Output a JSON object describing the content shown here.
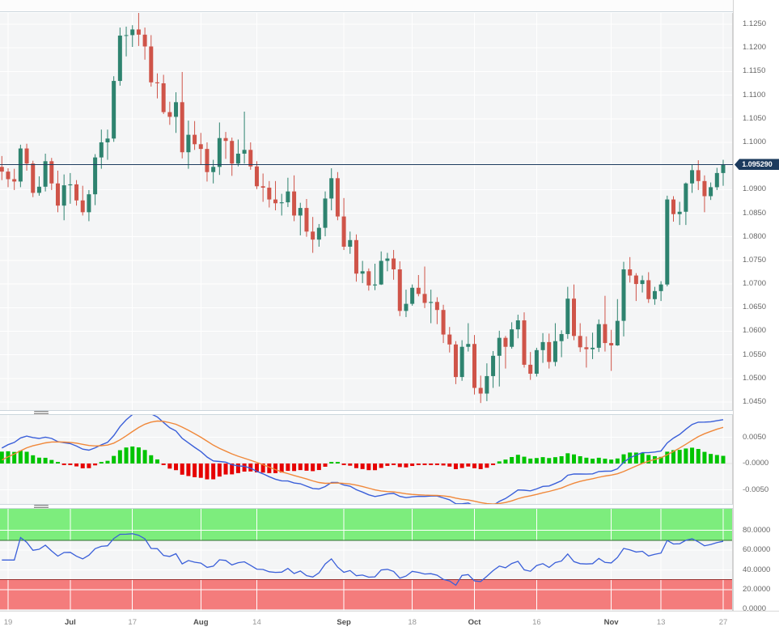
{
  "colors": {
    "candle_up": "#2e836f",
    "candle_down": "#cf5449",
    "wick_up": "#2e836f",
    "wick_down": "#cf5449",
    "grid": "#ffffff",
    "plot_bg": "#f4f5f6",
    "current_price_line": "#1c3b5e",
    "macd_line": "#3a5fd9",
    "signal_line": "#f0883a",
    "hist_up": "#00c400",
    "hist_down": "#e60000",
    "rsi_line": "#3a5fd9",
    "band_green": "#7ded7d",
    "band_red": "#f47c7c",
    "band_green_edge": "#2f6b2f",
    "band_red_edge": "#993333",
    "axis_text": "#676767"
  },
  "chart_data": {
    "type": "candlestick",
    "legend_position": "none",
    "grid": true,
    "current_price": {
      "value": 1.09529,
      "label": "1.095290"
    },
    "price_axis": {
      "ticks": [
        "1.1250",
        "1.1200",
        "1.1150",
        "1.1100",
        "1.1050",
        "1.1000",
        "1.0950",
        "1.0900",
        "1.0850",
        "1.0800",
        "1.0750",
        "1.0700",
        "1.0650",
        "1.0600",
        "1.0550",
        "1.0500",
        "1.0450"
      ],
      "tick_step": 0.005,
      "tick_hidden_by_price_tag": "1.0950",
      "ylim": [
        1.0437,
        1.1301
      ]
    },
    "x_axis": {
      "labels": [
        {
          "i": 1,
          "t": "19",
          "bold": false
        },
        {
          "i": 11,
          "t": "Jul",
          "bold": true
        },
        {
          "i": 21,
          "t": "17",
          "bold": false
        },
        {
          "i": 32,
          "t": "Aug",
          "bold": true
        },
        {
          "i": 41,
          "t": "14",
          "bold": false
        },
        {
          "i": 55,
          "t": "Sep",
          "bold": true
        },
        {
          "i": 66,
          "t": "18",
          "bold": false
        },
        {
          "i": 76,
          "t": "Oct",
          "bold": true
        },
        {
          "i": 86,
          "t": "16",
          "bold": false
        },
        {
          "i": 98,
          "t": "Nov",
          "bold": true
        },
        {
          "i": 106,
          "t": "13",
          "bold": false
        },
        {
          "i": 116,
          "t": "27",
          "bold": false
        }
      ]
    },
    "candles_ohlc": [
      [
        1.0948,
        1.0971,
        1.092,
        1.0938
      ],
      [
        1.0938,
        1.0945,
        1.0905,
        1.0922
      ],
      [
        1.0922,
        1.0944,
        1.0899,
        1.0917
      ],
      [
        1.0917,
        1.0995,
        1.0905,
        1.0987
      ],
      [
        1.0987,
        1.0997,
        1.094,
        1.0955
      ],
      [
        1.0955,
        1.0961,
        1.0884,
        1.0893
      ],
      [
        1.0893,
        1.0928,
        1.0887,
        1.0906
      ],
      [
        1.0906,
        1.0976,
        1.0896,
        1.096
      ],
      [
        1.096,
        1.0967,
        1.0899,
        1.0913
      ],
      [
        1.0913,
        1.094,
        1.0852,
        1.0866
      ],
      [
        1.0866,
        1.0932,
        1.0835,
        1.0909
      ],
      [
        1.0909,
        1.0935,
        1.087,
        1.0911
      ],
      [
        1.0911,
        1.092,
        1.0866,
        1.0877
      ],
      [
        1.0877,
        1.0908,
        1.0845,
        1.0852
      ],
      [
        1.0852,
        1.0899,
        1.0833,
        1.089
      ],
      [
        1.089,
        1.0975,
        1.0867,
        1.0968
      ],
      [
        1.0968,
        1.1027,
        1.0944,
        1.1
      ],
      [
        1.1,
        1.1027,
        1.0963,
        1.1008
      ],
      [
        1.1008,
        1.114,
        1.1001,
        1.113
      ],
      [
        1.113,
        1.1243,
        1.112,
        1.1226
      ],
      [
        1.1226,
        1.1245,
        1.1182,
        1.1227
      ],
      [
        1.1227,
        1.1248,
        1.1202,
        1.1239
      ],
      [
        1.1239,
        1.1276,
        1.1204,
        1.1228
      ],
      [
        1.1228,
        1.1243,
        1.1175,
        1.1203
      ],
      [
        1.1203,
        1.1227,
        1.1118,
        1.1127
      ],
      [
        1.1127,
        1.1146,
        1.1093,
        1.1125
      ],
      [
        1.1125,
        1.1143,
        1.106,
        1.1064
      ],
      [
        1.1064,
        1.1086,
        1.1037,
        1.1054
      ],
      [
        1.1054,
        1.1106,
        1.102,
        1.1085
      ],
      [
        1.1085,
        1.1149,
        1.0966,
        1.0979
      ],
      [
        1.0979,
        1.1046,
        1.0944,
        1.1016
      ],
      [
        1.1016,
        1.1045,
        1.0984,
        1.0996
      ],
      [
        1.0996,
        1.102,
        1.0952,
        1.0986
      ],
      [
        1.0986,
        1.1,
        1.0917,
        1.0937
      ],
      [
        1.0937,
        1.0963,
        1.0913,
        1.0948
      ],
      [
        1.0948,
        1.1042,
        1.0931,
        1.1009
      ],
      [
        1.1009,
        1.1022,
        1.0965,
        1.1003
      ],
      [
        1.1003,
        1.101,
        1.0929,
        1.0955
      ],
      [
        1.0955,
        1.1006,
        1.0949,
        1.0976
      ],
      [
        1.0976,
        1.1065,
        1.0955,
        1.0984
      ],
      [
        1.0984,
        1.1,
        1.0942,
        1.0949
      ],
      [
        1.0949,
        1.096,
        1.0901,
        1.0907
      ],
      [
        1.0907,
        1.0934,
        1.0874,
        1.0904
      ],
      [
        1.0904,
        1.0918,
        1.0862,
        1.0879
      ],
      [
        1.0879,
        1.0918,
        1.0856,
        1.0871
      ],
      [
        1.0871,
        1.0891,
        1.0845,
        1.0873
      ],
      [
        1.0873,
        1.0925,
        1.0863,
        1.0896
      ],
      [
        1.0896,
        1.093,
        1.0833,
        1.0845
      ],
      [
        1.0845,
        1.0872,
        1.0803,
        1.0861
      ],
      [
        1.0861,
        1.088,
        1.08,
        1.0811
      ],
      [
        1.0811,
        1.0842,
        1.0766,
        1.0794
      ],
      [
        1.0794,
        1.0827,
        1.0779,
        1.0819
      ],
      [
        1.0819,
        1.0896,
        1.0801,
        1.0881
      ],
      [
        1.0881,
        1.0945,
        1.0856,
        1.0924
      ],
      [
        1.0924,
        1.0937,
        1.0835,
        1.0843
      ],
      [
        1.0843,
        1.0882,
        1.0772,
        1.0779
      ],
      [
        1.0779,
        1.0811,
        1.0764,
        1.0793
      ],
      [
        1.0793,
        1.0805,
        1.0705,
        1.0722
      ],
      [
        1.0722,
        1.0749,
        1.0702,
        1.0727
      ],
      [
        1.0727,
        1.0733,
        1.0686,
        1.0697
      ],
      [
        1.0697,
        1.0743,
        1.0687,
        1.0699
      ],
      [
        1.0699,
        1.0769,
        1.0698,
        1.0749
      ],
      [
        1.0749,
        1.0766,
        1.0727,
        1.0754
      ],
      [
        1.0754,
        1.0772,
        1.0709,
        1.0731
      ],
      [
        1.0731,
        1.0748,
        1.0632,
        1.0643
      ],
      [
        1.0643,
        1.0688,
        1.063,
        1.0658
      ],
      [
        1.0658,
        1.0699,
        1.0654,
        1.0692
      ],
      [
        1.0692,
        1.0719,
        1.0674,
        1.0679
      ],
      [
        1.0679,
        1.0737,
        1.0649,
        1.066
      ],
      [
        1.066,
        1.0688,
        1.0617,
        1.0662
      ],
      [
        1.0662,
        1.0672,
        1.0615,
        1.0645
      ],
      [
        1.0645,
        1.0656,
        1.0575,
        1.0593
      ],
      [
        1.0593,
        1.0609,
        1.0555,
        1.0572
      ],
      [
        1.0572,
        1.0579,
        1.0488,
        1.0503
      ],
      [
        1.0503,
        1.0581,
        1.0495,
        1.0567
      ],
      [
        1.0567,
        1.0617,
        1.0557,
        1.0573
      ],
      [
        1.0573,
        1.0592,
        1.0466,
        1.048
      ],
      [
        1.048,
        1.0506,
        1.0448,
        1.0468
      ],
      [
        1.0468,
        1.0532,
        1.0452,
        1.0505
      ],
      [
        1.0505,
        1.0558,
        1.048,
        1.0548
      ],
      [
        1.0548,
        1.0601,
        1.0483,
        1.0586
      ],
      [
        1.0586,
        1.059,
        1.0521,
        1.0567
      ],
      [
        1.0567,
        1.0619,
        1.0563,
        1.0604
      ],
      [
        1.0604,
        1.0635,
        1.0585,
        1.0623
      ],
      [
        1.0623,
        1.064,
        1.0523,
        1.0529
      ],
      [
        1.0529,
        1.0556,
        1.0497,
        1.051
      ],
      [
        1.051,
        1.0565,
        1.0504,
        1.056
      ],
      [
        1.056,
        1.0596,
        1.0533,
        1.0577
      ],
      [
        1.0577,
        1.0595,
        1.0521,
        1.0535
      ],
      [
        1.0535,
        1.0617,
        1.0526,
        1.0579
      ],
      [
        1.0579,
        1.0602,
        1.0545,
        1.0594
      ],
      [
        1.0594,
        1.0694,
        1.0584,
        1.0669
      ],
      [
        1.0669,
        1.0699,
        1.0581,
        1.059
      ],
      [
        1.059,
        1.0617,
        1.0556,
        1.0566
      ],
      [
        1.0566,
        1.0589,
        1.0523,
        1.0562
      ],
      [
        1.0562,
        1.0597,
        1.0541,
        1.0565
      ],
      [
        1.0565,
        1.0625,
        1.0556,
        1.0615
      ],
      [
        1.0615,
        1.0675,
        1.0557,
        1.0575
      ],
      [
        1.0575,
        1.0603,
        1.0516,
        1.057
      ],
      [
        1.057,
        1.0668,
        1.0569,
        1.0622
      ],
      [
        1.0622,
        1.0747,
        1.0589,
        1.0731
      ],
      [
        1.0731,
        1.0757,
        1.0703,
        1.0718
      ],
      [
        1.0718,
        1.0723,
        1.0664,
        1.07
      ],
      [
        1.07,
        1.0718,
        1.0682,
        1.0708
      ],
      [
        1.0708,
        1.0725,
        1.066,
        1.0668
      ],
      [
        1.0668,
        1.0694,
        1.0656,
        1.0685
      ],
      [
        1.0685,
        1.0706,
        1.0664,
        1.0699
      ],
      [
        1.0699,
        1.0887,
        1.0695,
        1.0879
      ],
      [
        1.0879,
        1.0886,
        1.0832,
        1.0848
      ],
      [
        1.0848,
        1.0874,
        1.0825,
        1.0853
      ],
      [
        1.0853,
        1.0915,
        1.0825,
        1.0913
      ],
      [
        1.0913,
        1.0952,
        1.0893,
        1.0941
      ],
      [
        1.0941,
        1.0962,
        1.0899,
        1.0918
      ],
      [
        1.0918,
        1.093,
        1.0852,
        1.0886
      ],
      [
        1.0886,
        1.0915,
        1.0878,
        1.0905
      ],
      [
        1.0905,
        1.0946,
        1.0899,
        1.0935
      ],
      [
        1.0935,
        1.0963,
        1.0908,
        1.0953
      ]
    ],
    "indicator_warmup_closes": [
      1.0762,
      1.0707,
      1.0713,
      1.0691,
      1.0699,
      1.078,
      1.0749,
      1.0757,
      1.0791,
      1.083,
      1.0944
    ],
    "indicators": {
      "macd": {
        "fast": 12,
        "slow": 26,
        "signal": 9,
        "axis_ticks": [
          {
            "t": "0.0050",
            "v": 0.005
          },
          {
            "t": "-0.0000",
            "v": 0
          },
          {
            "t": "-0.0050",
            "v": -0.005
          }
        ]
      },
      "rsi": {
        "period": 14,
        "overbought": 70,
        "oversold": 30,
        "axis_ticks": [
          {
            "t": "80.0000",
            "v": 80
          },
          {
            "t": "60.0000",
            "v": 60
          },
          {
            "t": "40.0000",
            "v": 40
          },
          {
            "t": "20.0000",
            "v": 20
          },
          {
            "t": "0.0000",
            "v": 0
          }
        ]
      }
    }
  }
}
